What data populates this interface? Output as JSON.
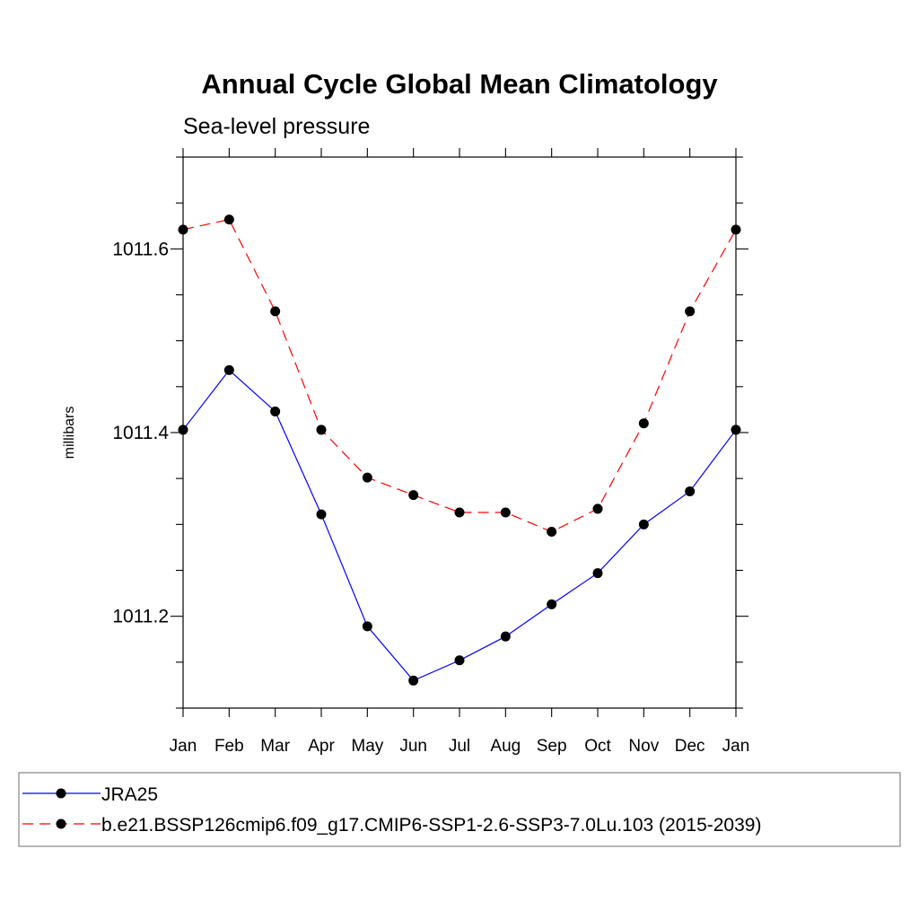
{
  "chart_data": {
    "type": "line",
    "title": "Annual Cycle Global Mean Climatology",
    "subtitle": "Sea-level pressure",
    "xlabel": "",
    "ylabel": "millibars",
    "categories": [
      "Jan",
      "Feb",
      "Mar",
      "Apr",
      "May",
      "Jun",
      "Jul",
      "Aug",
      "Sep",
      "Oct",
      "Nov",
      "Dec",
      "Jan"
    ],
    "ylim": [
      1011.1,
      1011.7
    ],
    "yticks": [
      1011.2,
      1011.4,
      1011.6
    ],
    "ytick_labels": [
      "1011.2",
      "1011.4",
      "1011.6"
    ],
    "yminor_step": 0.05,
    "grid": false,
    "legend_position": "bottom",
    "series": [
      {
        "name": "JRA25",
        "color": "#0000ff",
        "dash": "solid",
        "marker": "filled-circle",
        "values": [
          1011.403,
          1011.468,
          1011.423,
          1011.311,
          1011.189,
          1011.13,
          1011.152,
          1011.178,
          1011.213,
          1011.247,
          1011.3,
          1011.336,
          1011.403
        ]
      },
      {
        "name": "b.e21.BSSP126cmip6.f09_g17.CMIP6-SSP1-2.6-SSP3-7.0Lu.103 (2015-2039)",
        "color": "#ff0000",
        "dash": "dashed",
        "marker": "filled-circle",
        "values": [
          1011.621,
          1011.632,
          1011.532,
          1011.403,
          1011.351,
          1011.332,
          1011.313,
          1011.313,
          1011.292,
          1011.317,
          1011.41,
          1011.532,
          1011.621
        ]
      }
    ]
  }
}
